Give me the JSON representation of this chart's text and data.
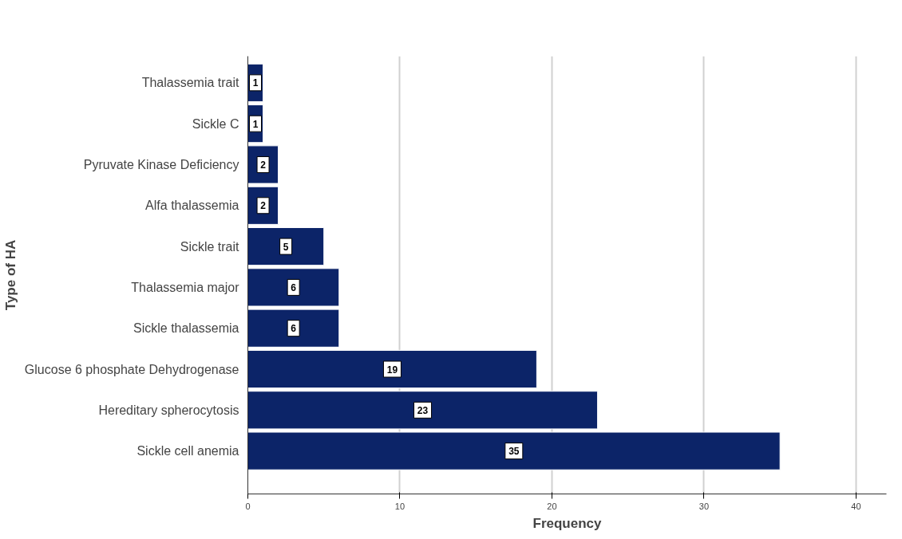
{
  "chart_data": {
    "type": "bar",
    "orientation": "horizontal",
    "xlabel": "Frequency",
    "ylabel": "Type of HA",
    "categories": [
      "Thalassemia trait",
      "Sickle C",
      "Pyruvate Kinase Deficiency",
      "Alfa thalassemia",
      "Sickle trait",
      "Thalassemia major",
      "Sickle thalassemia",
      "Glucose 6 phosphate Dehydrogenase",
      "Hereditary spherocytosis",
      "Sickle cell anemia"
    ],
    "values": [
      1,
      1,
      2,
      2,
      5,
      6,
      6,
      19,
      23,
      35
    ],
    "color": "#0c2468",
    "data_labels": true,
    "grid": "x",
    "xlim": [
      0,
      42
    ],
    "xticks": [
      0,
      10,
      20,
      30,
      40
    ]
  }
}
